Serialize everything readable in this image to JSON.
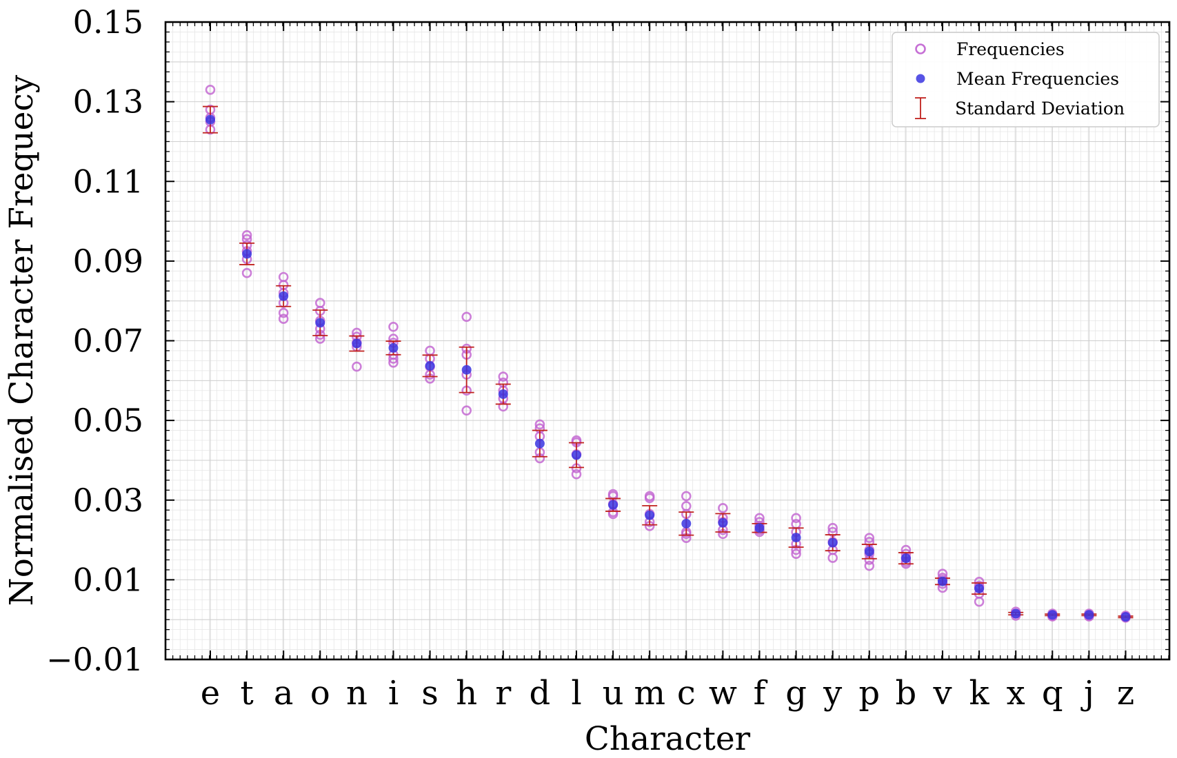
{
  "chart_data": {
    "type": "scatter",
    "xlabel": "Character",
    "ylabel": "Normalised Character Frequecy",
    "ylim": [
      -0.01,
      0.15
    ],
    "yticks": [
      "0.15",
      "0.13",
      "0.11",
      "0.09",
      "0.07",
      "0.05",
      "0.03",
      "0.01",
      "−0.01"
    ],
    "ytick_values": [
      0.15,
      0.13,
      0.11,
      0.09,
      0.07,
      0.05,
      0.03,
      0.01,
      -0.01
    ],
    "grid": true,
    "legend_position": "top-right",
    "categories": [
      "e",
      "t",
      "a",
      "o",
      "n",
      "i",
      "s",
      "h",
      "r",
      "d",
      "l",
      "u",
      "m",
      "c",
      "w",
      "f",
      "g",
      "y",
      "p",
      "b",
      "v",
      "k",
      "x",
      "q",
      "j",
      "z"
    ],
    "series": [
      {
        "name": "Frequencies",
        "marker": "open-circle",
        "color": "#c060d0",
        "points": [
          [
            0.133,
            0.128,
            0.126,
            0.125,
            0.123
          ],
          [
            0.0965,
            0.0955,
            0.094,
            0.0925,
            0.0905,
            0.087
          ],
          [
            0.086,
            0.084,
            0.082,
            0.0795,
            0.077,
            0.0755
          ],
          [
            0.0795,
            0.0775,
            0.075,
            0.073,
            0.0715,
            0.0705
          ],
          [
            0.072,
            0.071,
            0.0695,
            0.0685,
            0.0635
          ],
          [
            0.0735,
            0.0705,
            0.0695,
            0.0665,
            0.0655,
            0.0645
          ],
          [
            0.0675,
            0.0655,
            0.0635,
            0.0615,
            0.0605
          ],
          [
            0.076,
            0.068,
            0.0665,
            0.0615,
            0.0575,
            0.0525
          ],
          [
            0.061,
            0.0595,
            0.0575,
            0.0555,
            0.0535
          ],
          [
            0.049,
            0.048,
            0.046,
            0.042,
            0.0405
          ],
          [
            0.045,
            0.0445,
            0.0415,
            0.038,
            0.0365
          ],
          [
            0.0315,
            0.031,
            0.029,
            0.027,
            0.0265
          ],
          [
            0.031,
            0.0305,
            0.0265,
            0.0245,
            0.0235
          ],
          [
            0.031,
            0.0285,
            0.0265,
            0.022,
            0.0215,
            0.0205
          ],
          [
            0.028,
            0.0255,
            0.0245,
            0.0225,
            0.0215
          ],
          [
            0.0255,
            0.0245,
            0.0235,
            0.0225,
            0.022
          ],
          [
            0.0255,
            0.024,
            0.022,
            0.019,
            0.0175,
            0.0165
          ],
          [
            0.023,
            0.022,
            0.0195,
            0.0175,
            0.0155
          ],
          [
            0.0205,
            0.0195,
            0.0175,
            0.0165,
            0.015,
            0.0135
          ],
          [
            0.0175,
            0.0165,
            0.0155,
            0.0145,
            0.014
          ],
          [
            0.0115,
            0.0105,
            0.01,
            0.009,
            0.008
          ],
          [
            0.0095,
            0.0085,
            0.008,
            0.0065,
            0.0045
          ],
          [
            0.002,
            0.0015,
            0.001
          ],
          [
            0.0015,
            0.001,
            0.0008
          ],
          [
            0.0015,
            0.001,
            0.0008
          ],
          [
            0.001,
            0.0007,
            0.0005
          ]
        ]
      },
      {
        "name": "Mean Frequencies",
        "marker": "filled-circle",
        "color": "#3a35e0",
        "values": [
          0.1255,
          0.0918,
          0.0812,
          0.0745,
          0.0693,
          0.0682,
          0.0637,
          0.0627,
          0.0566,
          0.0442,
          0.0413,
          0.0288,
          0.0262,
          0.0241,
          0.0243,
          0.023,
          0.0206,
          0.0193,
          0.0171,
          0.0154,
          0.0096,
          0.0078,
          0.0015,
          0.0012,
          0.0012,
          0.0007
        ]
      },
      {
        "name": "Standard Deviation",
        "marker": "errorbar",
        "color": "#c0201c",
        "std": [
          0.0033,
          0.0027,
          0.0026,
          0.0032,
          0.0019,
          0.0017,
          0.0027,
          0.0057,
          0.0025,
          0.0033,
          0.0031,
          0.0016,
          0.0024,
          0.0029,
          0.0023,
          0.0011,
          0.0024,
          0.002,
          0.0018,
          0.0014,
          0.0008,
          0.0014,
          0.0003,
          0.0002,
          0.0002,
          0.0002
        ]
      }
    ]
  }
}
